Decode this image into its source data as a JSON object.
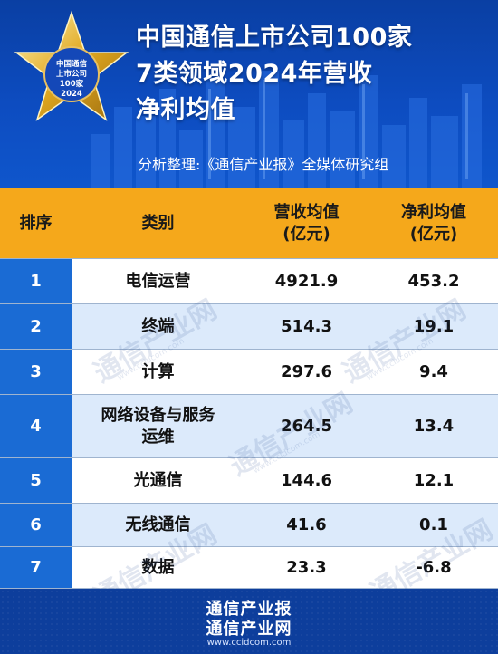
{
  "header": {
    "title_line1": "中国通信上市公司100家",
    "title_line2": "7类领域2024年营收",
    "title_line3": "净利均值",
    "subtitle": "分析整理:《通信产业报》全媒体研究组",
    "logo": {
      "line1": "中国通信",
      "line2": "上市公司",
      "line3": "100家",
      "line4": "2024"
    }
  },
  "table": {
    "headers": {
      "rank": "排序",
      "category": "类别",
      "revenue_line1": "营收均值",
      "revenue_line2": "(亿元)",
      "profit_line1": "净利均值",
      "profit_line2": "(亿元)"
    },
    "rows": [
      {
        "rank": "1",
        "category_line1": "电信运营",
        "category_line2": "",
        "revenue": "4921.9",
        "profit": "453.2"
      },
      {
        "rank": "2",
        "category_line1": "终端",
        "category_line2": "",
        "revenue": "514.3",
        "profit": "19.1"
      },
      {
        "rank": "3",
        "category_line1": "计算",
        "category_line2": "",
        "revenue": "297.6",
        "profit": "9.4"
      },
      {
        "rank": "4",
        "category_line1": "网络设备与服务",
        "category_line2": "运维",
        "revenue": "264.5",
        "profit": "13.4"
      },
      {
        "rank": "5",
        "category_line1": "光通信",
        "category_line2": "",
        "revenue": "144.6",
        "profit": "12.1"
      },
      {
        "rank": "6",
        "category_line1": "无线通信",
        "category_line2": "",
        "revenue": "41.6",
        "profit": "0.1"
      },
      {
        "rank": "7",
        "category_line1": "数据",
        "category_line2": "",
        "revenue": "23.3",
        "profit": "-6.8"
      }
    ]
  },
  "watermark": {
    "text": "通信产业网",
    "url": "www.ccidcom.com"
  },
  "footer": {
    "line1": "通信产业报",
    "line2": "通信产业网",
    "url": "www.ccidcom.com"
  },
  "colors": {
    "header_bg": "#0d4cc0",
    "table_header": "#f5a81b",
    "rank_cell": "#1a6bd4",
    "row_alt": "#dceafb",
    "footer_bg": "#0d3e9c"
  }
}
